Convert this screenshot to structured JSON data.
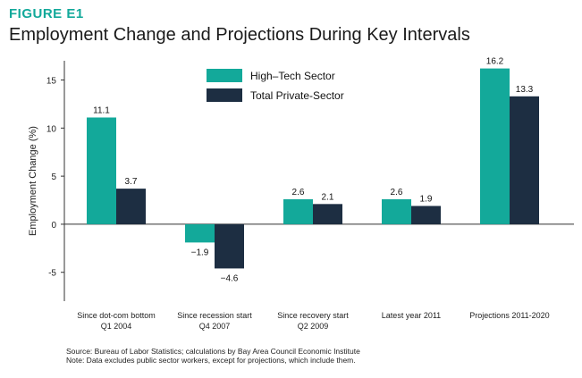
{
  "figure_label": "FIGURE E1",
  "figure_title": "Employment Change and Projections During Key Intervals",
  "colors": {
    "accent": "#12a99a",
    "high_tech": "#13a99a",
    "total_private": "#1d2e42",
    "axis": "#333333"
  },
  "chart_data": {
    "type": "bar",
    "title": "Employment Change and Projections During Key Intervals",
    "ylabel": "Employment Change (%)",
    "xlabel": "",
    "ylim": [
      -8,
      17
    ],
    "yticks": [
      "15",
      "10",
      "5",
      "0",
      "-5"
    ],
    "ytick_values": [
      15,
      10,
      5,
      0,
      -5
    ],
    "categories": [
      [
        "Since dot-com bottom",
        "Q1 2004"
      ],
      [
        "Since recession start",
        "Q4 2007"
      ],
      [
        "Since recovery start",
        "Q2 2009"
      ],
      [
        "Latest year 2011"
      ],
      [
        "Projections 2011-2020"
      ]
    ],
    "series": [
      {
        "name": "High–Tech Sector",
        "values": [
          11.1,
          -1.9,
          2.6,
          2.6,
          16.2
        ],
        "labels": [
          "11.1",
          "−1.9",
          "2.6",
          "2.6",
          "16.2"
        ]
      },
      {
        "name": "Total Private-Sector",
        "values": [
          3.7,
          -4.6,
          2.1,
          1.9,
          13.3
        ],
        "labels": [
          "3.7",
          "−4.6",
          "2.1",
          "1.9",
          "13.3"
        ]
      }
    ],
    "legend_position": "top-center",
    "grid": false
  },
  "source_lines": [
    "Source: Bureau of Labor Statistics; calculations by Bay Area Council Economic Institute",
    "Note: Data excludes public sector workers, except for projections, which include them."
  ]
}
